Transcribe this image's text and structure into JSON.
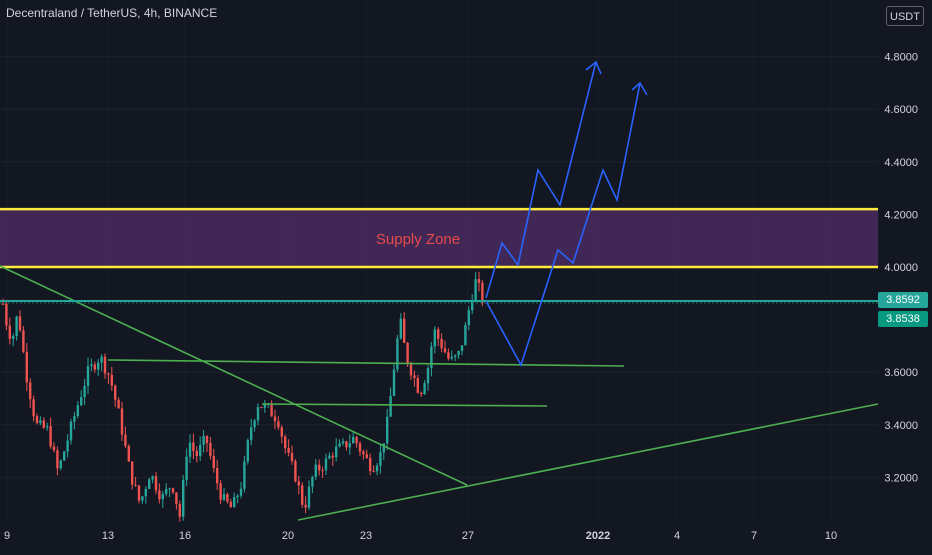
{
  "header": {
    "title": "Decentraland / TetherUS, 4h, BINANCE",
    "currency_badge": "USDT"
  },
  "colors": {
    "background": "#131722",
    "up_candle": "#26a69a",
    "down_candle": "#ef5350",
    "zone_line": "#ffeb3b",
    "zone_fill": "#4a2a5e",
    "zone_label": "#e84a4a",
    "trendline": "#4caf50",
    "projection": "#2962ff",
    "price_line": "#26a69a"
  },
  "price_tags": [
    "3.8592",
    "3.8538"
  ],
  "chart_data": {
    "type": "candlestick",
    "yaxis": {
      "ticks": [
        "4.8000",
        "4.6000",
        "4.4000",
        "4.2000",
        "4.0000",
        "3.6000",
        "3.4000",
        "3.2000"
      ],
      "range": [
        3.0,
        4.95
      ]
    },
    "xaxis": {
      "ticks": [
        "9",
        "13",
        "16",
        "20",
        "23",
        "27",
        "2022",
        "4",
        "7",
        "10"
      ]
    },
    "annotations": {
      "supply_zone_label": "Supply Zone",
      "supply_zone": [
        4.0,
        4.22
      ]
    },
    "current_prices": [
      3.8592,
      3.8538
    ]
  }
}
